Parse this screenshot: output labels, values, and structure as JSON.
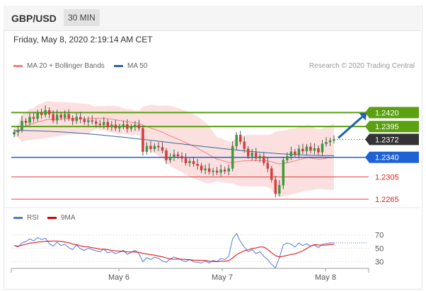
{
  "header": {
    "pair": "GBP/USD",
    "timeframe": "30 MIN"
  },
  "datetime": "Friday, May 8, 2020 2:19:14 AM CET",
  "legend": {
    "bollinger": {
      "label": "MA 20 + Bollinger Bands",
      "color": "#f08080"
    },
    "ma50": {
      "label": "MA 50",
      "color": "#336699"
    }
  },
  "credit": "Research © 2020 Trading Central",
  "rsi_legend": {
    "rsi": {
      "label": "RSI",
      "color": "#5577dd"
    },
    "ma9": {
      "label": "9MA",
      "color": "#dd0000"
    }
  },
  "chart_data": [
    {
      "type": "line",
      "subtype": "candlestick",
      "x_ticks": [
        "May 6",
        "May 7",
        "May 8"
      ],
      "price_axis_range": [
        1.2255,
        1.2495
      ],
      "levels": [
        {
          "label": "1.2420",
          "value": 1.242,
          "kind": "resistance",
          "color": "#5aa010"
        },
        {
          "label": "1.2395",
          "value": 1.2395,
          "kind": "resistance",
          "color": "#5aa010"
        },
        {
          "label": "1.2372",
          "value": 1.2372,
          "kind": "last-price",
          "color": "#333333"
        },
        {
          "label": "1.2340",
          "value": 1.234,
          "kind": "pivot",
          "color": "#1e62d8"
        },
        {
          "label": "1.2305",
          "value": 1.2305,
          "kind": "support",
          "color": "#dd2222"
        },
        {
          "label": "1.2265",
          "value": 1.2265,
          "kind": "support",
          "color": "#dd2222"
        }
      ],
      "closes": [
        1.2385,
        1.2389,
        1.2405,
        1.2402,
        1.2412,
        1.2409,
        1.242,
        1.2416,
        1.2424,
        1.2417,
        1.2406,
        1.2416,
        1.2411,
        1.2417,
        1.241,
        1.2405,
        1.2412,
        1.2408,
        1.2403,
        1.2406,
        1.2404,
        1.24,
        1.2398,
        1.2403,
        1.2394,
        1.2398,
        1.2392,
        1.2395,
        1.2399,
        1.2391,
        1.2394,
        1.2398,
        1.2392,
        1.235,
        1.236,
        1.2355,
        1.236,
        1.2358,
        1.2352,
        1.2335,
        1.234,
        1.2345,
        1.2342,
        1.2338,
        1.233,
        1.2333,
        1.2328,
        1.2325,
        1.2317,
        1.232,
        1.2314,
        1.2316,
        1.2313,
        1.2318,
        1.2315,
        1.232,
        1.236,
        1.238,
        1.2368,
        1.2355,
        1.2342,
        1.2348,
        1.2338,
        1.2342,
        1.233,
        1.232,
        1.23,
        1.2275,
        1.229,
        1.2335,
        1.2342,
        1.235,
        1.2345,
        1.2355,
        1.2351,
        1.2359,
        1.2352,
        1.2356,
        1.2349,
        1.2364,
        1.2367,
        1.237,
        1.2372
      ],
      "ma50_start": 1.2388,
      "ma50_end": 1.2343,
      "projection": {
        "from": 1.2372,
        "to": 1.242,
        "direction": "up"
      }
    },
    {
      "type": "line",
      "indicator": "RSI",
      "series": [
        {
          "name": "RSI",
          "color": "#5577dd"
        },
        {
          "name": "9MA",
          "color": "#dd0000"
        }
      ],
      "y_ticks": [
        "70",
        "50",
        "30"
      ],
      "ylim": [
        20,
        80
      ],
      "rsi_values": [
        54,
        52,
        58,
        60,
        64,
        61,
        66,
        63,
        65,
        57,
        53,
        59,
        54,
        56,
        51,
        48,
        55,
        49,
        47,
        50,
        48,
        46,
        45,
        49,
        43,
        45,
        42,
        44,
        47,
        41,
        44,
        47,
        42,
        30,
        36,
        33,
        37,
        35,
        31,
        29,
        34,
        37,
        35,
        32,
        30,
        33,
        30,
        29,
        28,
        31,
        28,
        32,
        30,
        35,
        33,
        38,
        64,
        72,
        60,
        52,
        45,
        48,
        42,
        45,
        38,
        33,
        26,
        21,
        36,
        55,
        58,
        56,
        52,
        58,
        54,
        57,
        53,
        55,
        51,
        56,
        57,
        58,
        58
      ]
    }
  ]
}
